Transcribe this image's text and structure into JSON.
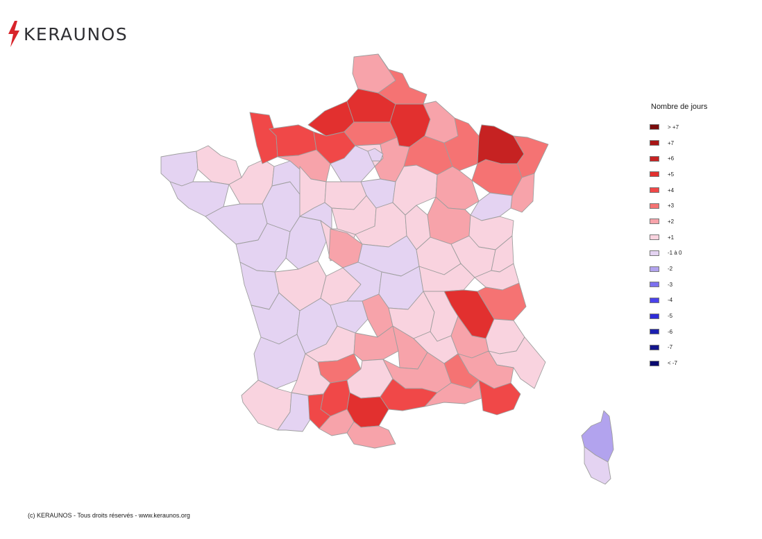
{
  "brand": {
    "name": "KERAUNOS",
    "bolt_color": "#d8242a",
    "text_color": "#2f2f33"
  },
  "legend": {
    "title": "Nombre de jours",
    "items": [
      {
        "label": "> +7",
        "color": "#7a0c0c"
      },
      {
        "label": "+7",
        "color": "#a81515"
      },
      {
        "label": "+6",
        "color": "#c62222"
      },
      {
        "label": "+5",
        "color": "#e2302f"
      },
      {
        "label": "+4",
        "color": "#f04848"
      },
      {
        "label": "+3",
        "color": "#f57373"
      },
      {
        "label": "+2",
        "color": "#f7a3aa"
      },
      {
        "label": "+1",
        "color": "#f9d3df"
      },
      {
        "label": "-1 à 0",
        "color": "#e4d3f2"
      },
      {
        "label": "-2",
        "color": "#b2a3ee"
      },
      {
        "label": "-3",
        "color": "#7c70ee"
      },
      {
        "label": "-4",
        "color": "#4a42ec"
      },
      {
        "label": "-5",
        "color": "#2e2cd8"
      },
      {
        "label": "-6",
        "color": "#1c20b0"
      },
      {
        "label": "-7",
        "color": "#14168c"
      },
      {
        "label": "< -7",
        "color": "#0a0a6e"
      }
    ]
  },
  "footer": {
    "text": "(c) KERAUNOS - Tous droits réservés - www.keraunos.org"
  }
}
